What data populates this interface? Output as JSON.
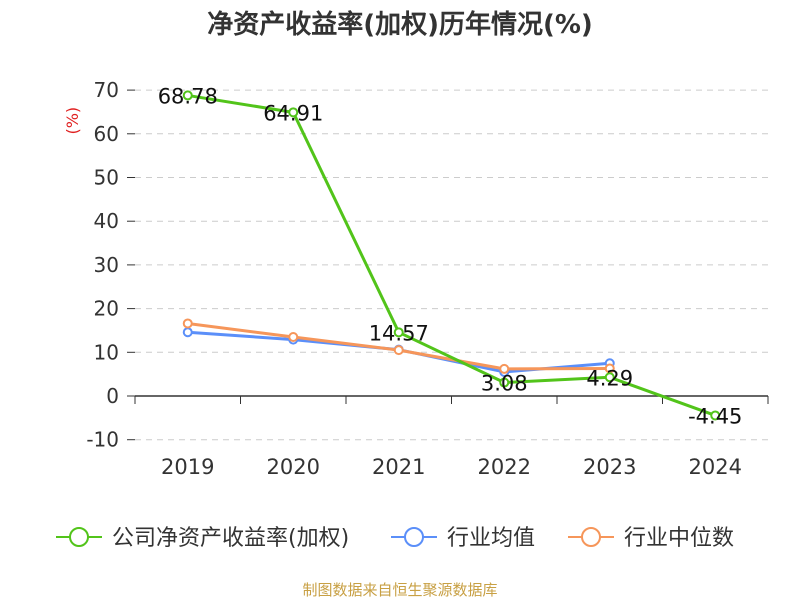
{
  "title": "净资产收益率(加权)历年情况(%)",
  "source": "制图数据来自恒生聚源数据库",
  "colors": {
    "company": "#52c41a",
    "industry_avg": "#5b8ff9",
    "industry_median": "#f6965a",
    "unit": "#e02020",
    "grid": "#cccccc",
    "axis": "#333333",
    "text": "#333333"
  },
  "chart_data": {
    "type": "line",
    "title": "净资产收益率(加权)历年情况(%)",
    "ylabel": "(%)",
    "xlabel": "",
    "ylim": [
      -10,
      70
    ],
    "yticks": [
      "-10",
      "0",
      "10",
      "20",
      "30",
      "40",
      "50",
      "60",
      "70"
    ],
    "categories": [
      "2019",
      "2020",
      "2021",
      "2022",
      "2023",
      "2024"
    ],
    "series": [
      {
        "name": "公司净资产收益率(加权)",
        "key": "company",
        "values": [
          68.78,
          64.91,
          14.57,
          3.08,
          4.29,
          -4.45
        ],
        "labels": [
          "68.78",
          "64.91",
          "14.57",
          "3.08",
          "4.29",
          "-4.45"
        ]
      },
      {
        "name": "行业均值",
        "key": "industry_avg",
        "values": [
          14.6,
          12.9,
          10.6,
          5.5,
          7.5,
          null
        ]
      },
      {
        "name": "行业中位数",
        "key": "industry_median",
        "values": [
          16.6,
          13.5,
          10.5,
          6.2,
          6.3,
          null
        ]
      }
    ]
  }
}
